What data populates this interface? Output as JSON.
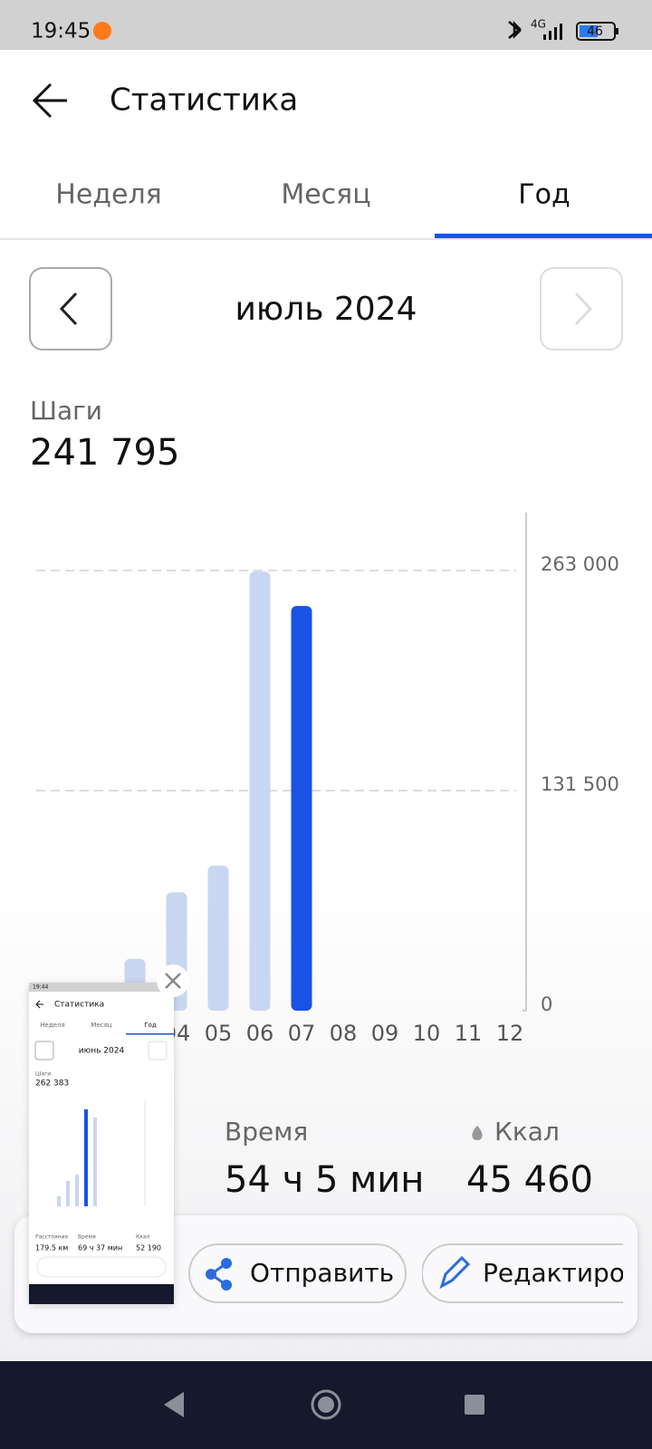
{
  "status_bar": {
    "time": "19:45",
    "network": "4G",
    "battery": "46"
  },
  "header": {
    "title": "Статистика"
  },
  "tabs": [
    "Неделя",
    "Месяц",
    "Год"
  ],
  "period": "июль 2024",
  "steps": {
    "label": "Шаги",
    "value": "241 795"
  },
  "chart": {
    "type": "bar",
    "categories": [
      null,
      null,
      null,
      "04",
      "05",
      "06",
      "07",
      "08",
      "09",
      "10",
      "11",
      "12"
    ],
    "values": [
      null,
      null,
      31000,
      70700,
      86700,
      262383,
      241795,
      null,
      null,
      null,
      null,
      null
    ],
    "color": "#c9d6f1",
    "highlight_color": "#1a52e6",
    "highlight_index": 6,
    "ylim": [
      0,
      263000
    ],
    "yticks": [
      0,
      {
        "value": 131500,
        "label": "131 500"
      },
      {
        "value": 263000,
        "label": "263 000"
      }
    ],
    "grid": true
  },
  "stats": [
    {
      "label": "Время",
      "value": "54 ч 5 мин"
    },
    {
      "label": "Ккал",
      "value": "45 460"
    }
  ],
  "actions": [
    "Отправить",
    "Редактиров"
  ],
  "thumbnail": {
    "time": "19:44",
    "title": "Статистика",
    "tabs": [
      "Неделя",
      "Месяц",
      "Год"
    ],
    "period": "июнь 2024",
    "steps_label": "Шаги",
    "steps": "262 383",
    "stats": [
      {
        "label": "Расстояние",
        "value": "179.5 км"
      },
      {
        "label": "Время",
        "value": "69 ч 37 мин"
      },
      {
        "label": "Ккал",
        "value": "52 190"
      }
    ]
  }
}
